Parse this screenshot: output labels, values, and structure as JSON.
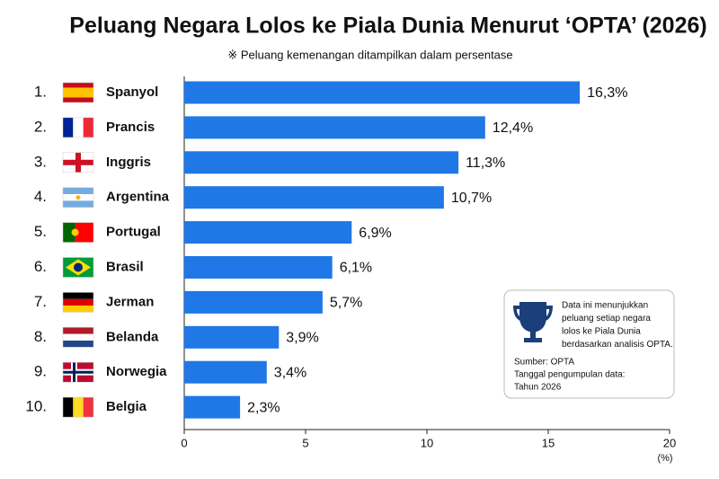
{
  "chart_data": {
    "type": "bar",
    "orientation": "horizontal",
    "title": "Peluang Negara Lolos ke Piala Dunia Menurut ‘OPTA’ (2026)",
    "subtitle": "※ Peluang kemenangan ditampilkan dalam persentase",
    "ranks": [
      "1.",
      "2.",
      "3.",
      "4.",
      "5.",
      "6.",
      "7.",
      "8.",
      "9.",
      "10."
    ],
    "categories": [
      "Spanyol",
      "Prancis",
      "Inggris",
      "Argentina",
      "Portugal",
      "Brasil",
      "Jerman",
      "Belanda",
      "Norwegia",
      "Belgia"
    ],
    "values": [
      16.3,
      12.4,
      11.3,
      10.7,
      6.9,
      6.1,
      5.7,
      3.9,
      3.4,
      2.3
    ],
    "value_labels": [
      "16,3%",
      "12,4%",
      "11,3%",
      "10,7%",
      "6,9%",
      "6,1%",
      "5,7%",
      "3,9%",
      "3,4%",
      "2,3%"
    ],
    "color": "#1f78e6",
    "xlim": [
      0,
      20
    ],
    "xticks": [
      0,
      5,
      10,
      15,
      20
    ],
    "x_label": "(%)",
    "grid": false,
    "note": {
      "description": [
        "Data ini menunjukkan",
        "peluang setiap negara",
        "lolos ke Piala Dunia",
        "berdasarkan analisis OPTA."
      ],
      "source": [
        "Sumber: OPTA",
        "Tanggal pengumpulan data:",
        "Tahun 2026"
      ]
    }
  }
}
